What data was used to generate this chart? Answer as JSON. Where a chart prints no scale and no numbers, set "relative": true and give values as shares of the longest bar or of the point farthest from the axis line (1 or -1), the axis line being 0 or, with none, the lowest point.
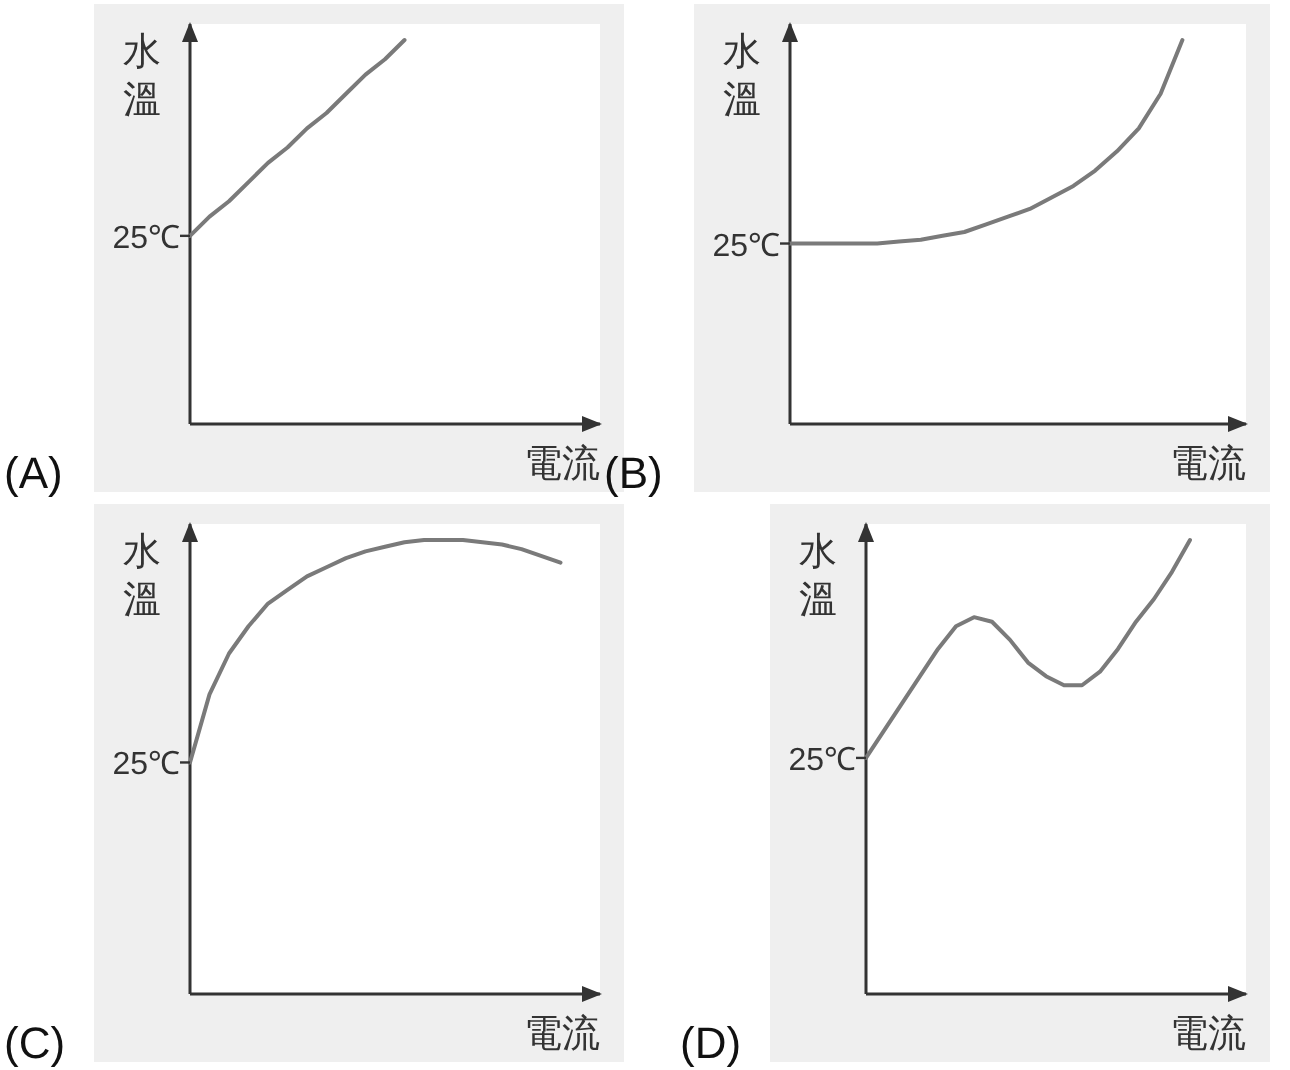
{
  "chart_data": [
    {
      "type": "line",
      "title": "(A)",
      "xlabel": "電流",
      "ylabel": "水溫",
      "relative": true,
      "color": "#7a7a7a",
      "annotations": [
        "25℃"
      ],
      "categories": [
        null,
        null,
        null,
        null,
        null,
        null,
        null,
        null,
        null,
        null,
        null,
        null,
        null,
        null,
        null,
        null,
        null,
        null,
        null,
        null,
        null
      ],
      "values": [
        0.49,
        0.54,
        0.58,
        0.63,
        0.68,
        0.72,
        0.77,
        0.81,
        0.86,
        0.91,
        0.95,
        1.0,
        null,
        null,
        null,
        null,
        null,
        null,
        null,
        null,
        null
      ]
    },
    {
      "type": "line",
      "title": "(B)",
      "xlabel": "電流",
      "ylabel": "水溫",
      "relative": true,
      "color": "#7a7a7a",
      "annotations": [
        "25℃"
      ],
      "categories": [
        null,
        null,
        null,
        null,
        null,
        null,
        null,
        null,
        null,
        null,
        null,
        null,
        null,
        null,
        null,
        null,
        null,
        null,
        null,
        null,
        null
      ],
      "values": [
        0.47,
        0.47,
        0.47,
        0.47,
        0.47,
        0.475,
        0.48,
        0.49,
        0.5,
        0.52,
        0.54,
        0.56,
        0.59,
        0.62,
        0.66,
        0.71,
        0.77,
        0.86,
        1.0,
        null,
        null
      ]
    },
    {
      "type": "line",
      "title": "(C)",
      "xlabel": "電流",
      "ylabel": "水溫",
      "relative": true,
      "color": "#7a7a7a",
      "annotations": [
        "25℃"
      ],
      "categories": [
        null,
        null,
        null,
        null,
        null,
        null,
        null,
        null,
        null,
        null,
        null,
        null,
        null,
        null,
        null,
        null,
        null,
        null,
        null,
        null,
        null
      ],
      "values": [
        0.51,
        0.66,
        0.75,
        0.81,
        0.86,
        0.89,
        0.92,
        0.94,
        0.96,
        0.975,
        0.985,
        0.995,
        1.0,
        1.0,
        1.0,
        0.995,
        0.99,
        0.98,
        0.965,
        0.95,
        null
      ]
    },
    {
      "type": "line",
      "title": "(D)",
      "xlabel": "電流",
      "ylabel": "水溫",
      "relative": true,
      "color": "#7a7a7a",
      "annotations": [
        "25℃"
      ],
      "categories": [
        null,
        null,
        null,
        null,
        null,
        null,
        null,
        null,
        null,
        null,
        null,
        null,
        null,
        null,
        null,
        null,
        null,
        null,
        null,
        null,
        null
      ],
      "values": [
        0.52,
        0.58,
        0.64,
        0.7,
        0.76,
        0.81,
        0.83,
        0.82,
        0.78,
        0.73,
        0.7,
        0.68,
        0.68,
        0.71,
        0.76,
        0.82,
        0.87,
        0.93,
        1.0,
        null,
        null
      ]
    }
  ]
}
